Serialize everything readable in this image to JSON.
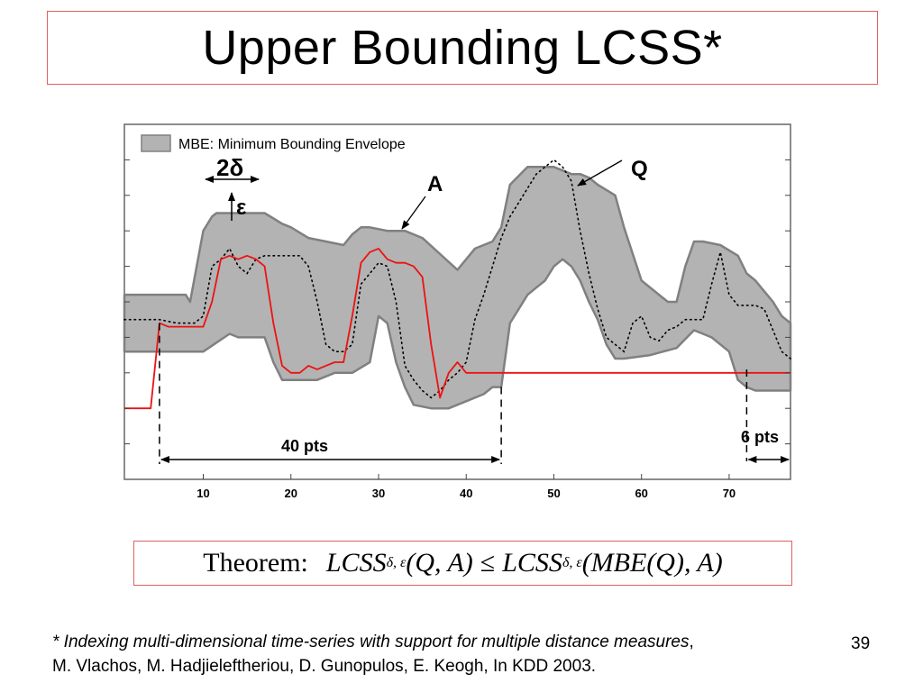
{
  "slide": {
    "title": "Upper Bounding LCSS*",
    "page_number": "39"
  },
  "theorem": {
    "label": "Theorem:",
    "expression_prefix": "LCSS",
    "subscript": "δ, ε",
    "left_args": "(Q, A)",
    "relation": "≤",
    "right_args": "(MBE(Q), A)"
  },
  "footnote": {
    "italic_text": "* Indexing multi-dimensional time-series with support for multiple distance measures",
    "comma": ",",
    "second_line": "M. Vlachos, M. Hadjieleftheriou, D. Gunopulos, E. Keogh, In KDD 2003."
  },
  "chart_data": {
    "type": "line",
    "xlim": [
      1,
      77
    ],
    "ylim": [
      0,
      10
    ],
    "x_ticks": [
      10,
      20,
      30,
      40,
      50,
      60,
      70
    ],
    "x_tick_labels": [
      "10",
      "20",
      "30",
      "40",
      "50",
      "60",
      "70"
    ],
    "y_tick_labels": [],
    "grid": false,
    "legend": {
      "label": "MBE: Minimum Bounding Envelope",
      "placement": "top-left"
    },
    "colors": {
      "envelope_fill": "#b3b3b3",
      "envelope_stroke": "#808080",
      "a_line": "#ee1111",
      "q_line": "#000000"
    },
    "series": [
      {
        "name": "Q",
        "style": "dotted",
        "x": [
          1,
          3,
          5,
          7,
          9,
          10,
          11,
          12,
          13,
          14,
          15,
          16,
          17,
          18,
          19,
          20,
          21,
          22,
          23,
          24,
          25,
          26,
          27,
          28,
          29,
          30,
          31,
          32,
          33,
          34,
          35,
          36,
          37,
          38,
          39,
          40,
          41,
          42,
          43,
          44,
          45,
          46,
          47,
          48,
          49,
          50,
          51,
          52,
          53,
          54,
          55,
          56,
          57,
          58,
          59,
          60,
          61,
          62,
          63,
          64,
          65,
          66,
          67,
          68,
          69,
          70,
          71,
          72,
          73,
          74,
          75,
          76,
          77
        ],
        "y": [
          4.5,
          4.5,
          4.5,
          4.4,
          4.4,
          4.6,
          6.0,
          6.2,
          6.5,
          6.0,
          5.8,
          6.2,
          6.3,
          6.3,
          6.3,
          6.3,
          6.3,
          6.0,
          5.0,
          3.8,
          3.6,
          3.6,
          3.8,
          5.5,
          5.8,
          6.1,
          6.0,
          5.0,
          3.2,
          2.8,
          2.5,
          2.3,
          2.5,
          2.8,
          3.0,
          3.3,
          4.5,
          5.2,
          6.0,
          6.8,
          7.4,
          7.8,
          8.2,
          8.6,
          8.8,
          9.0,
          8.8,
          8.4,
          7.0,
          5.8,
          4.8,
          4.0,
          3.8,
          3.6,
          4.4,
          4.6,
          4.0,
          3.9,
          4.2,
          4.3,
          4.5,
          4.5,
          4.5,
          5.5,
          6.4,
          5.2,
          4.9,
          4.9,
          4.9,
          4.8,
          4.2,
          3.6,
          3.4
        ]
      },
      {
        "name": "A",
        "style": "solid",
        "x": [
          1,
          2,
          3,
          4,
          5,
          6,
          7,
          8,
          9,
          10,
          11,
          12,
          13,
          14,
          15,
          16,
          17,
          18,
          19,
          20,
          21,
          22,
          23,
          24,
          25,
          26,
          27,
          28,
          29,
          30,
          31,
          32,
          33,
          34,
          35,
          36,
          37,
          38,
          39,
          40,
          41,
          42,
          43,
          44,
          45,
          50,
          55,
          60,
          65,
          70,
          75,
          77
        ],
        "y": [
          2.0,
          2.0,
          2.0,
          2.0,
          4.4,
          4.3,
          4.3,
          4.3,
          4.3,
          4.3,
          5.0,
          6.2,
          6.3,
          6.2,
          6.3,
          6.2,
          6.0,
          4.4,
          3.2,
          3.0,
          3.0,
          3.2,
          3.1,
          3.2,
          3.3,
          3.3,
          4.6,
          6.1,
          6.4,
          6.5,
          6.2,
          6.1,
          6.1,
          6.0,
          5.7,
          3.8,
          2.3,
          3.0,
          3.3,
          3.0,
          3.0,
          3.0,
          3.0,
          3.0,
          3.0,
          3.0,
          3.0,
          3.0,
          3.0,
          3.0,
          3.0,
          3.0
        ]
      },
      {
        "name": "MBE upper",
        "x": [
          1,
          8,
          8.5,
          10,
          11,
          11.5,
          17,
          19,
          20,
          22,
          24,
          26,
          27,
          28,
          29,
          31,
          33,
          35,
          39,
          41,
          43,
          44,
          45,
          47,
          48,
          50,
          51,
          52,
          53,
          54,
          55,
          57,
          58,
          60,
          62,
          63,
          64,
          65,
          66,
          67,
          69,
          71,
          72,
          73,
          74,
          75,
          76,
          77
        ],
        "y": [
          5.2,
          5.2,
          5.0,
          7.0,
          7.4,
          7.5,
          7.5,
          7.2,
          7.1,
          6.8,
          6.7,
          6.6,
          6.9,
          7.1,
          7.1,
          7.0,
          7.0,
          6.8,
          5.9,
          6.5,
          6.7,
          7.1,
          8.3,
          8.8,
          8.8,
          8.8,
          8.7,
          8.6,
          8.6,
          8.5,
          8.3,
          8.0,
          7.1,
          5.6,
          5.2,
          5.0,
          5.0,
          6.0,
          6.7,
          6.7,
          6.6,
          6.3,
          5.8,
          5.6,
          5.3,
          5.0,
          4.6,
          4.4
        ]
      },
      {
        "name": "MBE lower",
        "x": [
          1,
          10,
          13,
          14,
          17,
          18,
          19,
          20,
          23,
          25,
          27,
          29,
          30,
          31,
          32,
          33,
          34,
          36,
          38,
          40,
          42,
          43,
          44,
          45,
          46,
          47,
          48,
          49,
          50,
          51,
          52,
          53,
          54,
          55,
          56,
          57,
          58,
          61,
          64,
          66,
          68,
          70,
          71,
          72,
          73,
          74,
          75,
          76,
          77
        ],
        "y": [
          3.6,
          3.6,
          4.1,
          4.0,
          4.0,
          3.3,
          2.8,
          2.8,
          2.8,
          3.0,
          3.0,
          3.3,
          4.6,
          4.4,
          3.3,
          2.6,
          2.1,
          2.0,
          2.0,
          2.2,
          2.4,
          2.6,
          2.6,
          4.4,
          4.8,
          5.2,
          5.4,
          5.6,
          6.0,
          6.2,
          6.0,
          5.6,
          5.0,
          4.5,
          3.8,
          3.4,
          3.4,
          3.5,
          3.7,
          4.2,
          4.0,
          3.6,
          2.8,
          2.6,
          2.5,
          2.5,
          2.5,
          2.5,
          2.5
        ]
      }
    ],
    "annotations": {
      "label_q": "Q",
      "label_a": "A",
      "label_2delta": "2δ",
      "label_epsilon": "ε",
      "label_40pts": "40 pts",
      "label_6pts": "6 pts",
      "span_40_x": [
        5,
        44
      ],
      "span_6_x": [
        72,
        77
      ]
    }
  }
}
